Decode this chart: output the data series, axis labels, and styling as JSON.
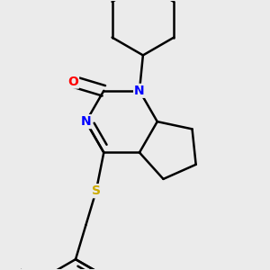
{
  "background_color": "#ebebeb",
  "atom_colors": {
    "N": "#0000ff",
    "O": "#ff0000",
    "S": "#ccaa00"
  },
  "bond_lw": 1.8,
  "dbo": 0.018
}
